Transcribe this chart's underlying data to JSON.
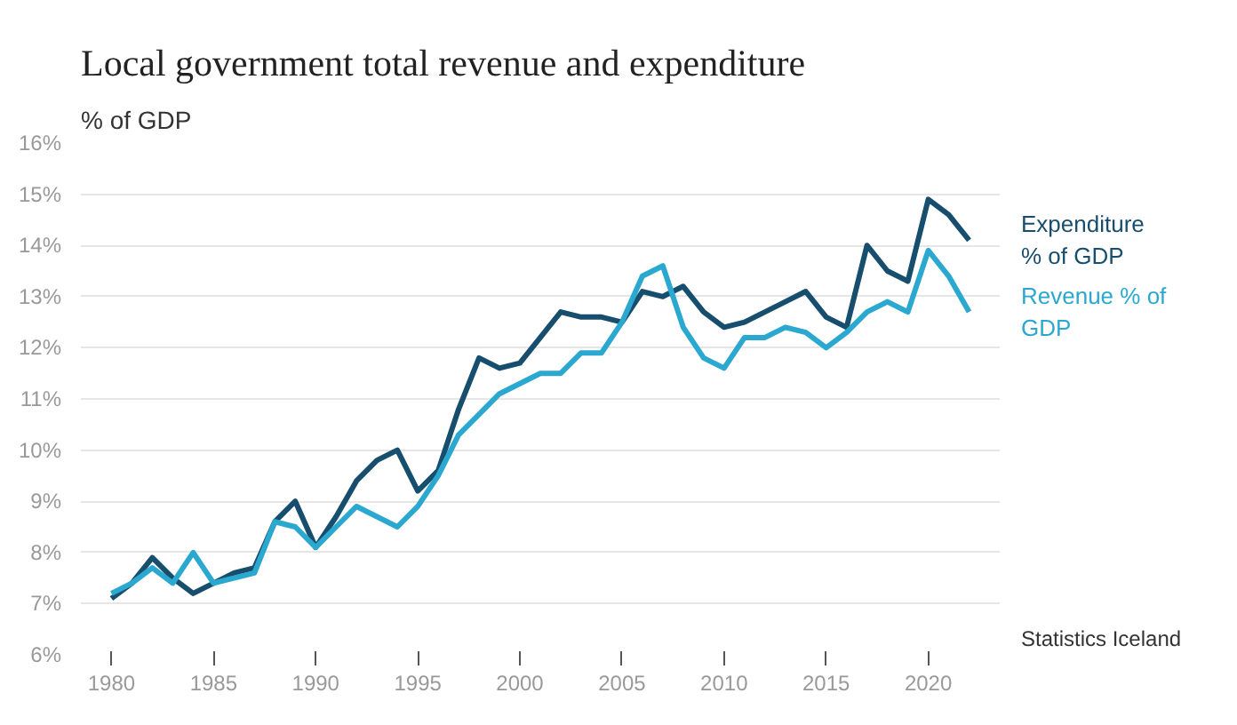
{
  "chart_data": {
    "type": "line",
    "title": "Local government total revenue and expenditure",
    "subtitle": "% of GDP",
    "x": [
      1980,
      1981,
      1982,
      1983,
      1984,
      1985,
      1986,
      1987,
      1988,
      1989,
      1990,
      1991,
      1992,
      1993,
      1994,
      1995,
      1996,
      1997,
      1998,
      1999,
      2000,
      2001,
      2002,
      2003,
      2004,
      2005,
      2006,
      2007,
      2008,
      2009,
      2010,
      2011,
      2012,
      2013,
      2014,
      2015,
      2016,
      2017,
      2018,
      2019,
      2020,
      2021,
      2022
    ],
    "series": [
      {
        "name": "Expenditure % of GDP",
        "color": "#174e6e",
        "values": [
          7.1,
          7.4,
          7.9,
          7.5,
          7.2,
          7.4,
          7.6,
          7.7,
          8.6,
          9.0,
          8.1,
          8.7,
          9.4,
          9.8,
          10.0,
          9.2,
          9.6,
          10.8,
          11.8,
          11.6,
          11.7,
          12.2,
          12.7,
          12.6,
          12.6,
          12.5,
          13.1,
          13.0,
          13.2,
          12.7,
          12.4,
          12.5,
          12.7,
          12.9,
          13.1,
          12.6,
          12.4,
          14.0,
          13.5,
          13.3,
          14.9,
          14.6,
          14.1
        ]
      },
      {
        "name": "Revenue % of GDP",
        "color": "#2aa8cf",
        "values": [
          7.2,
          7.4,
          7.7,
          7.4,
          8.0,
          7.4,
          7.5,
          7.6,
          8.6,
          8.5,
          8.1,
          8.5,
          8.9,
          8.7,
          8.5,
          8.9,
          9.5,
          10.3,
          10.7,
          11.1,
          11.3,
          11.5,
          11.5,
          11.9,
          11.9,
          12.5,
          13.4,
          13.6,
          12.4,
          11.8,
          11.6,
          12.2,
          12.2,
          12.4,
          12.3,
          12.0,
          12.3,
          12.7,
          12.9,
          12.7,
          13.9,
          13.4,
          12.7
        ]
      }
    ],
    "xlim": [
      1978.5,
      2023.5
    ],
    "xticks": [
      1980,
      1985,
      1990,
      1995,
      2000,
      2005,
      2010,
      2015,
      2020
    ],
    "ylim": [
      6,
      16
    ],
    "yticks": [
      {
        "value": 6,
        "label": "6%"
      },
      {
        "value": 7,
        "label": "7%"
      },
      {
        "value": 8,
        "label": "8%"
      },
      {
        "value": 9,
        "label": "9%"
      },
      {
        "value": 10,
        "label": "10%"
      },
      {
        "value": 11,
        "label": "11%"
      },
      {
        "value": 12,
        "label": "12%"
      },
      {
        "value": 13,
        "label": "13%"
      },
      {
        "value": 14,
        "label": "14%"
      },
      {
        "value": 15,
        "label": "15%"
      },
      {
        "value": 16,
        "label": "16%"
      }
    ],
    "grid": "y",
    "legend": false,
    "marker": "none",
    "line_style": "solid",
    "annotations": [
      "Statistics Iceland"
    ]
  }
}
